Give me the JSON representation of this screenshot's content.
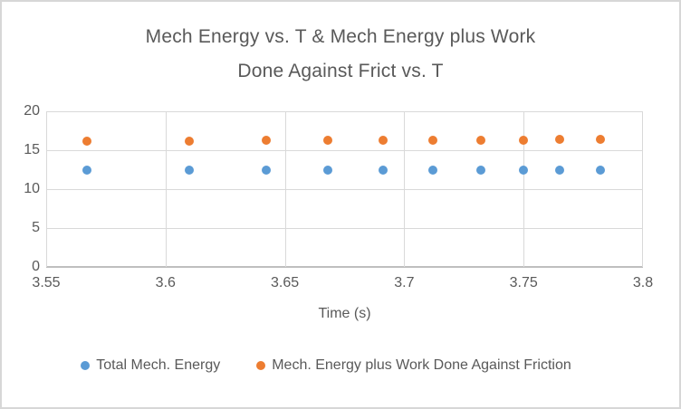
{
  "chart_data": {
    "type": "scatter",
    "title": "Mech Energy vs. T & Mech Energy plus Work Done Against Frict vs. T",
    "title_lines": [
      "Mech Energy vs. T & Mech Energy plus Work",
      "Done Against Frict vs. T"
    ],
    "xlabel": "Time (s)",
    "ylabel": "",
    "xlim": [
      3.55,
      3.8
    ],
    "ylim": [
      0,
      20
    ],
    "grid": true,
    "legend_position": "bottom",
    "x_ticks": [
      {
        "v": 3.55,
        "label": "3.55"
      },
      {
        "v": 3.6,
        "label": "3.6"
      },
      {
        "v": 3.65,
        "label": "3.65"
      },
      {
        "v": 3.7,
        "label": "3.7"
      },
      {
        "v": 3.75,
        "label": "3.75"
      },
      {
        "v": 3.8,
        "label": "3.8"
      }
    ],
    "y_ticks": [
      {
        "v": 0,
        "label": "0"
      },
      {
        "v": 5,
        "label": "5"
      },
      {
        "v": 10,
        "label": "10"
      },
      {
        "v": 15,
        "label": "15"
      },
      {
        "v": 20,
        "label": "20"
      }
    ],
    "x": [
      3.567,
      3.61,
      3.642,
      3.668,
      3.691,
      3.712,
      3.732,
      3.75,
      3.765,
      3.782
    ],
    "series": [
      {
        "name": "Total Mech. Energy",
        "color": "#5B9BD5",
        "values": [
          12.5,
          12.5,
          12.5,
          12.5,
          12.5,
          12.5,
          12.5,
          12.5,
          12.5,
          12.5
        ]
      },
      {
        "name": "Mech. Energy plus Work Done Against Friction",
        "color": "#ED7D31",
        "values": [
          16.2,
          16.2,
          16.25,
          16.25,
          16.3,
          16.3,
          16.3,
          16.3,
          16.35,
          16.35
        ]
      }
    ],
    "colors": {
      "gridline": "#D9D9D9",
      "axis_line": "#BFBFBF",
      "text": "#595959",
      "frame_border": "#D7D7D7",
      "background": "#FFFFFF"
    }
  }
}
